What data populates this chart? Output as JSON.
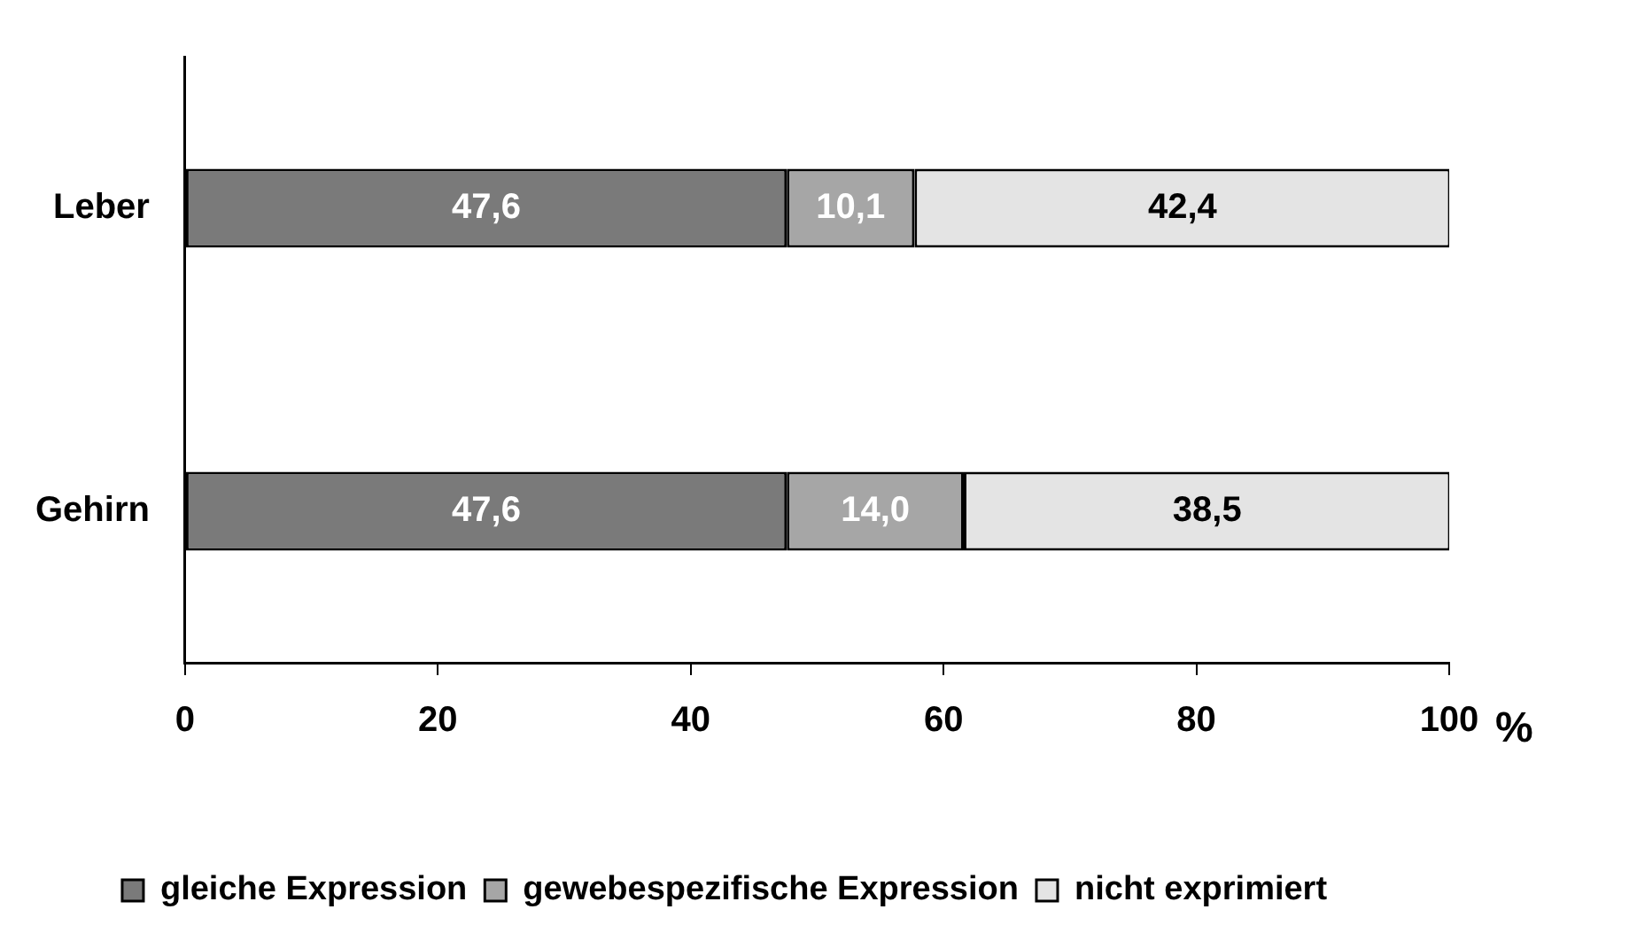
{
  "chart_data": {
    "type": "bar",
    "orientation": "horizontal",
    "stacked": true,
    "categories": [
      "Leber",
      "Gehirn"
    ],
    "series": [
      {
        "name": "gleiche Expression",
        "color": "#7a7a7a",
        "values": [
          47.6,
          47.6
        ],
        "value_labels": [
          "47,6",
          "47,6"
        ]
      },
      {
        "name": "gewebespezifische Expression",
        "color": "#a6a6a6",
        "values": [
          10.1,
          14.0
        ],
        "value_labels": [
          "10,1",
          "14,0"
        ]
      },
      {
        "name": "nicht exprimiert",
        "color": "#e4e4e4",
        "values": [
          42.4,
          38.5
        ],
        "value_labels": [
          "42,4",
          "38,5"
        ]
      }
    ],
    "xlim": [
      0,
      100
    ],
    "xticks": [
      0,
      20,
      40,
      60,
      80,
      100
    ],
    "xlabel": "%",
    "grid": false,
    "legend": "bottom"
  }
}
